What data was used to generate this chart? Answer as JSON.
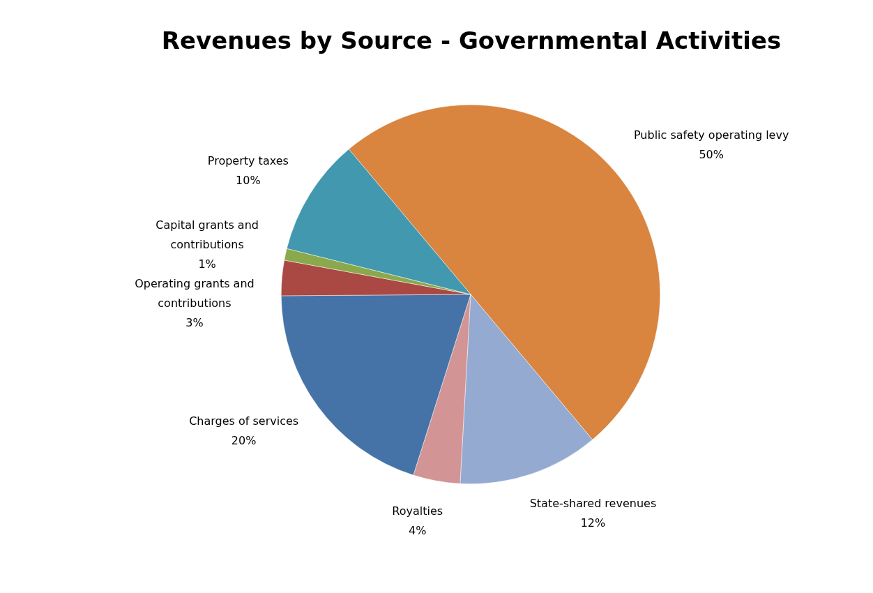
{
  "chart_data": {
    "type": "pie",
    "title": "Revenues by Source - Governmental Activities",
    "categories": [
      "Public safety operating levy",
      "State-shared revenues",
      "Royalties",
      "Charges of services",
      "Operating grants and contributions",
      "Capital grants and contributions",
      "Property taxes"
    ],
    "values": [
      50,
      12,
      4,
      20,
      3,
      1,
      10
    ],
    "value_labels": [
      "50%",
      "12%",
      "4%",
      "20%",
      "3%",
      "1%",
      "10%"
    ],
    "colors": [
      "#d9843f",
      "#95aad1",
      "#d29494",
      "#4573a7",
      "#aa4844",
      "#8aa94d",
      "#4298ae"
    ],
    "legend": false
  }
}
